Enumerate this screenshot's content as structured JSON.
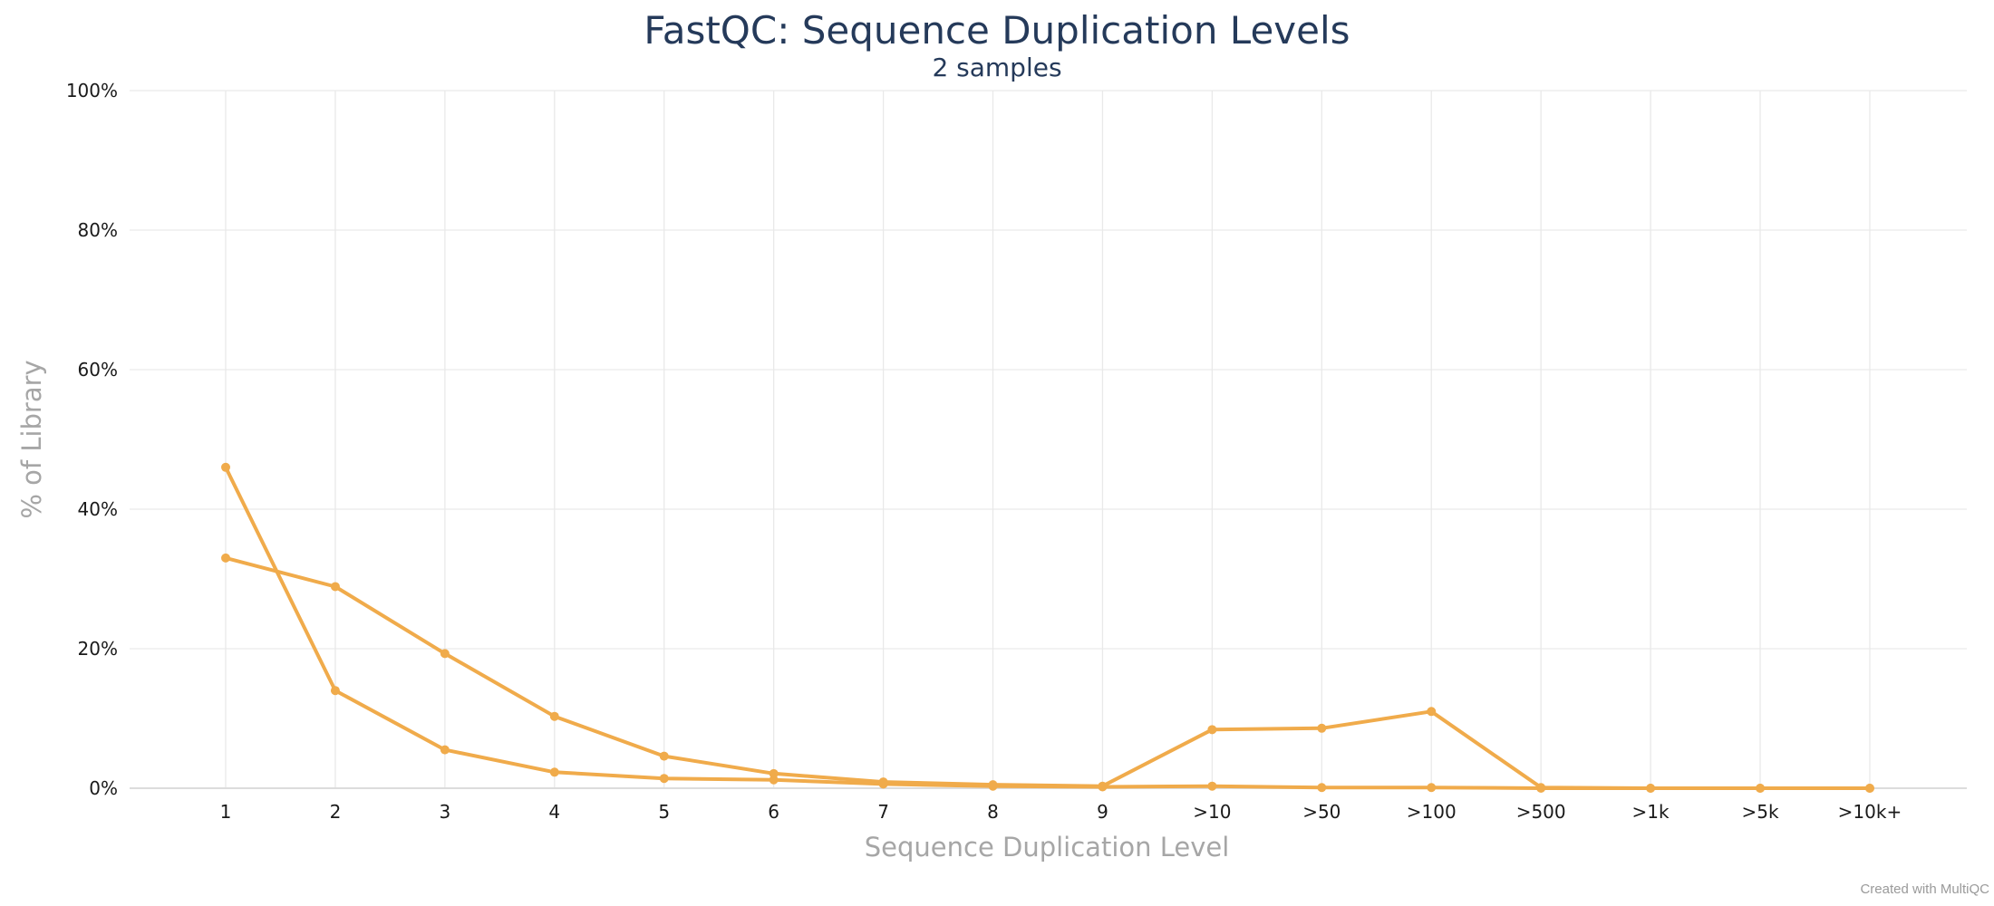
{
  "chart_data": {
    "type": "line",
    "title": "FastQC: Sequence Duplication Levels",
    "subtitle": "2 samples",
    "xlabel": "Sequence Duplication Level",
    "ylabel": "% of Library",
    "categories": [
      "1",
      "2",
      "3",
      "4",
      "5",
      "6",
      "7",
      "8",
      "9",
      ">10",
      ">50",
      ">100",
      ">500",
      ">1k",
      ">5k",
      ">10k+"
    ],
    "ylim": [
      0,
      100
    ],
    "y_ticks": [
      "0%",
      "20%",
      "40%",
      "60%",
      "80%",
      "100%"
    ],
    "grid": true,
    "legend": "none",
    "series": [
      {
        "color": "#f0ab4b",
        "values": [
          46.0,
          14.0,
          5.5,
          2.3,
          1.4,
          1.2,
          0.6,
          0.3,
          0.2,
          0.3,
          0.1,
          0.1,
          0.0,
          0.0,
          0.0,
          0.0
        ]
      },
      {
        "color": "#f0ab4b",
        "values": [
          33.0,
          28.9,
          19.3,
          10.3,
          4.6,
          2.1,
          0.9,
          0.5,
          0.3,
          8.4,
          8.6,
          11.0,
          0.1,
          0.0,
          0.0,
          0.0
        ]
      }
    ]
  },
  "credit": "Created with MultiQC"
}
